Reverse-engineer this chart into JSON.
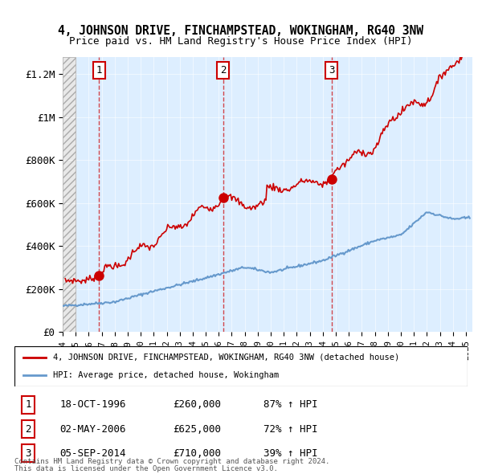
{
  "title1": "4, JOHNSON DRIVE, FINCHAMPSTEAD, WOKINGHAM, RG40 3NW",
  "title2": "Price paid vs. HM Land Registry's House Price Index (HPI)",
  "ylabel_ticks": [
    "£0",
    "£200K",
    "£400K",
    "£600K",
    "£800K",
    "£1M",
    "£1.2M"
  ],
  "ytick_vals": [
    0,
    200000,
    400000,
    600000,
    800000,
    1000000,
    1200000
  ],
  "ylim": [
    0,
    1280000
  ],
  "xlim_start": 1994.0,
  "xlim_end": 2025.5,
  "sale_dates": [
    1996.8,
    2006.33,
    2014.67
  ],
  "sale_prices": [
    260000,
    625000,
    710000
  ],
  "sale_labels": [
    "1",
    "2",
    "3"
  ],
  "legend_line1": "4, JOHNSON DRIVE, FINCHAMPSTEAD, WOKINGHAM, RG40 3NW (detached house)",
  "legend_line2": "HPI: Average price, detached house, Wokingham",
  "table_rows": [
    [
      "1",
      "18-OCT-1996",
      "£260,000",
      "87% ↑ HPI"
    ],
    [
      "2",
      "02-MAY-2006",
      "£625,000",
      "72% ↑ HPI"
    ],
    [
      "3",
      "05-SEP-2014",
      "£710,000",
      "39% ↑ HPI"
    ]
  ],
  "footnote1": "Contains HM Land Registry data © Crown copyright and database right 2024.",
  "footnote2": "This data is licensed under the Open Government Licence v3.0.",
  "red_color": "#cc0000",
  "blue_color": "#6699cc",
  "bg_plot": "#ddeeff",
  "bg_hatch": "#e8e8e8"
}
